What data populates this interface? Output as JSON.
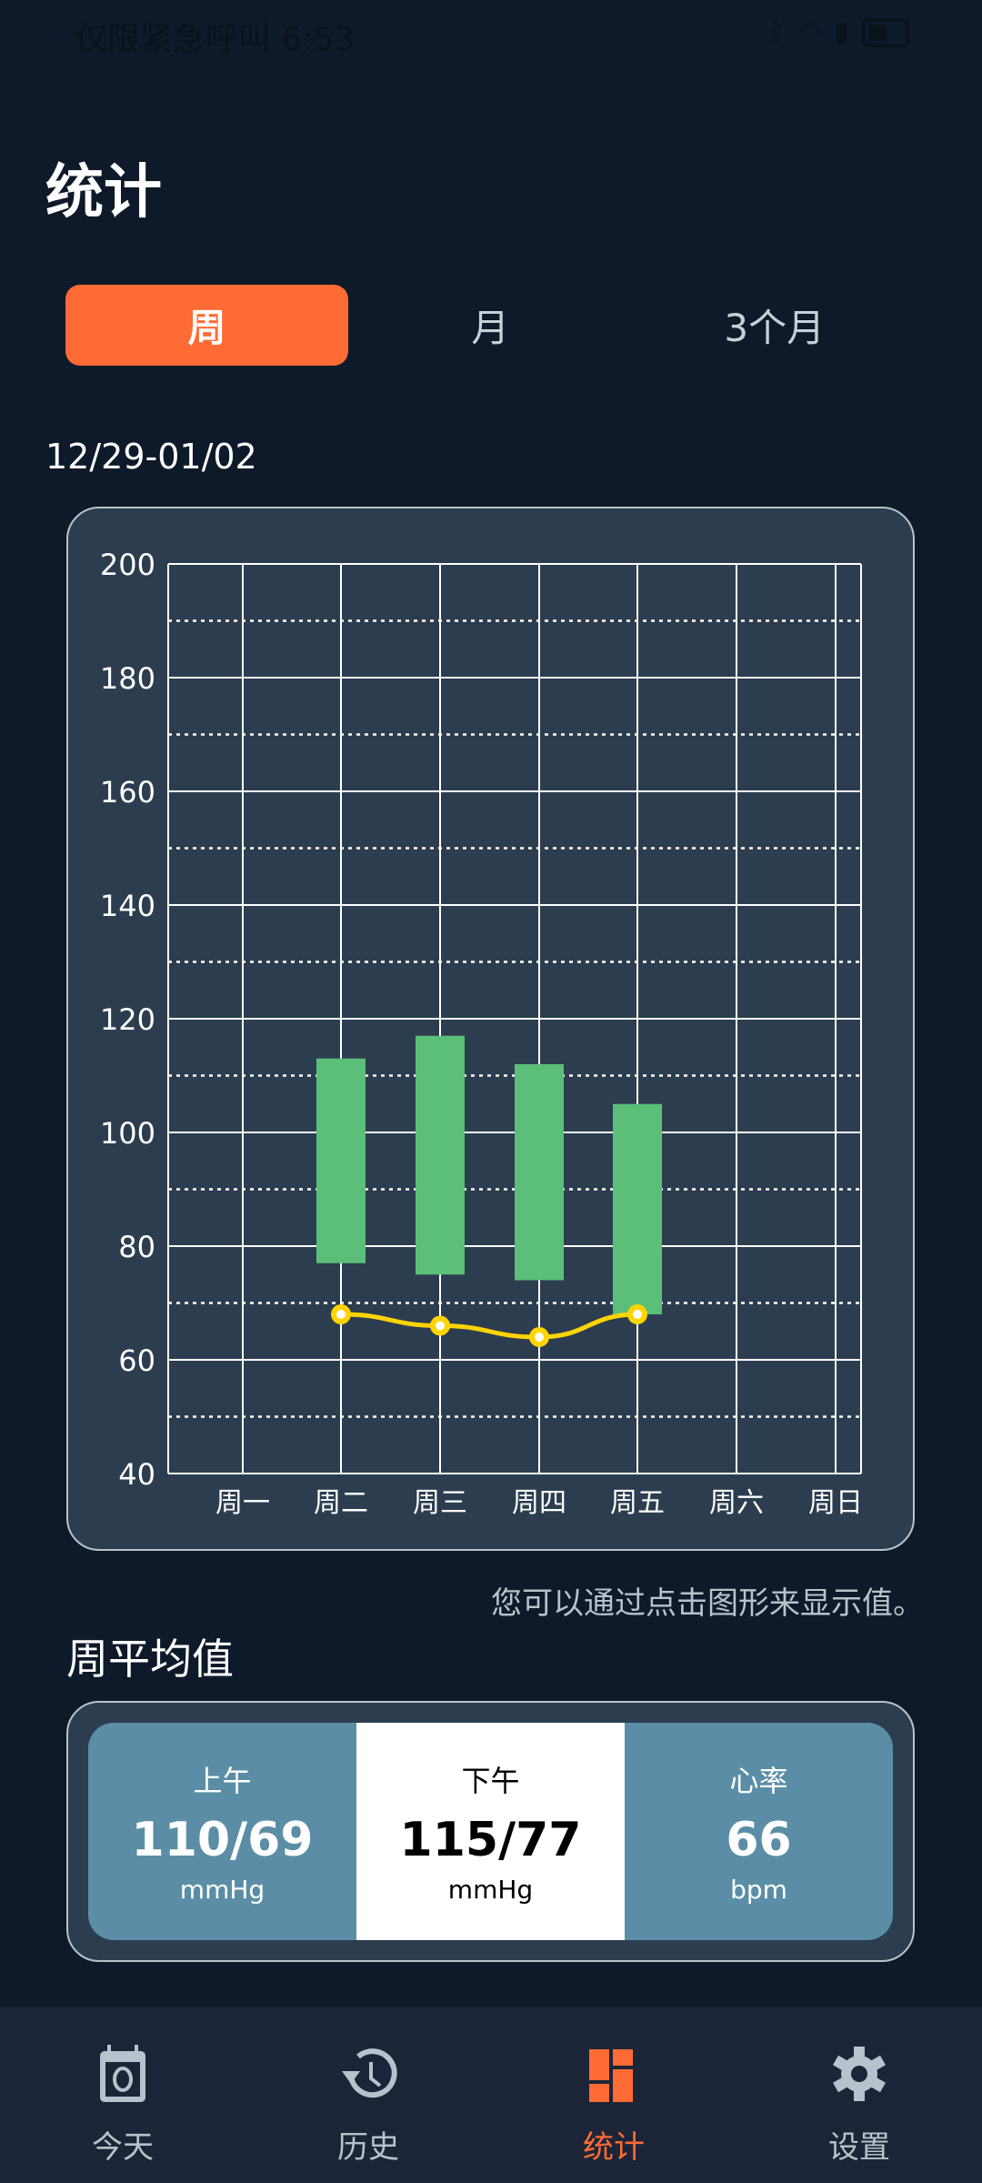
{
  "status_bar": {
    "carrier_time": "仅限紧急呼叫 6:53",
    "icons": [
      "bluetooth-icon",
      "wifi-icon",
      "signal-icon",
      "battery-icon"
    ]
  },
  "page_title": "统计",
  "tabs": [
    {
      "label": "周",
      "active": true
    },
    {
      "label": "月"
    },
    {
      "label": "3个月"
    }
  ],
  "date_range": "12/29-01/02",
  "chart_data": {
    "type": "bar",
    "subtype": "range-bar with line",
    "categories": [
      "周一",
      "周二",
      "周三",
      "周四",
      "周五",
      "周六",
      "周日"
    ],
    "ylim": [
      40,
      200
    ],
    "yticks": [
      40,
      60,
      80,
      100,
      120,
      140,
      160,
      180,
      200
    ],
    "grid": true,
    "series": [
      {
        "type": "range-bar",
        "color": "#5bbf7a",
        "high": [
          null,
          113,
          117,
          112,
          105,
          null,
          null
        ],
        "low": [
          null,
          77,
          75,
          74,
          68,
          null,
          null
        ]
      },
      {
        "type": "line",
        "color": "#ffd400",
        "values": [
          null,
          68,
          66,
          64,
          68,
          null,
          null
        ]
      }
    ]
  },
  "hint": "您可以通过点击图形来显示值。",
  "average": {
    "title": "周平均值",
    "cells": [
      {
        "label": "上午",
        "value": "110/69",
        "unit": "mmHg"
      },
      {
        "label": "下午",
        "value": "115/77",
        "unit": "mmHg",
        "selected": true
      },
      {
        "label": "心率",
        "value": "66",
        "unit": "bpm"
      }
    ]
  },
  "nav": [
    {
      "label": "今天",
      "icon": "calendar-icon"
    },
    {
      "label": "历史",
      "icon": "history-icon"
    },
    {
      "label": "统计",
      "icon": "stats-icon",
      "active": true
    },
    {
      "label": "设置",
      "icon": "gear-icon"
    }
  ],
  "colors": {
    "accent": "#ff6b35",
    "background": "#0e1a29",
    "card": "#2d3d50",
    "bar": "#5bbf7a",
    "line": "#ffd400",
    "panel": "#5b8ea6"
  }
}
